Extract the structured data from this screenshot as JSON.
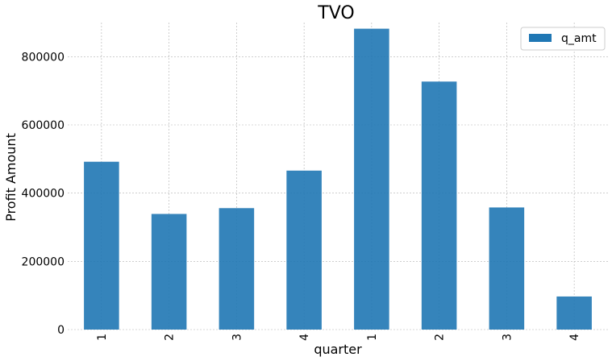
{
  "chart_data": {
    "type": "bar",
    "title": "TVO",
    "xlabel": "quarter",
    "ylabel": "Profit Amount",
    "categories": [
      "1",
      "2",
      "3",
      "4",
      "1",
      "2",
      "3",
      "4"
    ],
    "series": [
      {
        "name": "q_amt",
        "color": "#1f77b4",
        "values": [
          492000,
          339000,
          356000,
          466000,
          882000,
          727000,
          358000,
          97000
        ]
      }
    ],
    "ylim": [
      0,
      900000
    ],
    "yticks": [
      0,
      200000,
      400000,
      600000,
      800000
    ],
    "ytick_labels": [
      "0",
      "200000",
      "400000",
      "600000",
      "800000"
    ],
    "grid": true,
    "legend_position": "top-right"
  }
}
